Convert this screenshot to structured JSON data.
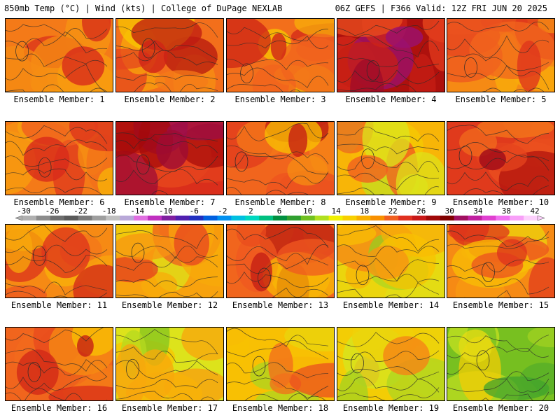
{
  "header": {
    "left": "850mb Temp (°C) | Wind (kts) | College of DuPage NEXLAB",
    "right": "06Z GEFS | F366 Valid: 12Z FRI JUN 20 2025"
  },
  "members": [
    {
      "label": "Ensemble Member: 1",
      "warmth": 0.58
    },
    {
      "label": "Ensemble Member: 2",
      "warmth": 0.6
    },
    {
      "label": "Ensemble Member: 3",
      "warmth": 0.6
    },
    {
      "label": "Ensemble Member: 4",
      "warmth": 0.85
    },
    {
      "label": "Ensemble Member: 5",
      "warmth": 0.55
    },
    {
      "label": "Ensemble Member: 6",
      "warmth": 0.58
    },
    {
      "label": "Ensemble Member: 7",
      "warmth": 0.75
    },
    {
      "label": "Ensemble Member: 8",
      "warmth": 0.62
    },
    {
      "label": "Ensemble Member: 9",
      "warmth": 0.45
    },
    {
      "label": "Ensemble Member: 10",
      "warmth": 0.72
    },
    {
      "label": "Ensemble Member: 11",
      "warmth": 0.55
    },
    {
      "label": "Ensemble Member: 12",
      "warmth": 0.5
    },
    {
      "label": "Ensemble Member: 13",
      "warmth": 0.62
    },
    {
      "label": "Ensemble Member: 14",
      "warmth": 0.35
    },
    {
      "label": "Ensemble Member: 15",
      "warmth": 0.55
    },
    {
      "label": "Ensemble Member: 16",
      "warmth": 0.62
    },
    {
      "label": "Ensemble Member: 17",
      "warmth": 0.3
    },
    {
      "label": "Ensemble Member: 18",
      "warmth": 0.42
    },
    {
      "label": "Ensemble Member: 19",
      "warmth": 0.38
    },
    {
      "label": "Ensemble Member: 20",
      "warmth": 0.15
    }
  ],
  "colorbar": {
    "labels": [
      "-30",
      "-26",
      "-22",
      "-18",
      "-14",
      "-10",
      "-6",
      "-2",
      "2",
      "6",
      "10",
      "14",
      "18",
      "22",
      "26",
      "30",
      "34",
      "38",
      "42"
    ],
    "colors": [
      "#b0b0b0",
      "#8c8c8c",
      "#6e6e6e",
      "#5a5a5a",
      "#7a7a7a",
      "#9e9e9e",
      "#c0c0c0",
      "#b8a8d8",
      "#e070e0",
      "#c030c0",
      "#8020a0",
      "#5020b0",
      "#2030c0",
      "#0060e0",
      "#0090f0",
      "#00c0e0",
      "#00d8c0",
      "#00c080",
      "#009040",
      "#30a030",
      "#70c020",
      "#b0e020",
      "#f0f000",
      "#f8d000",
      "#f8b000",
      "#f89000",
      "#f06020",
      "#e03020",
      "#c81818",
      "#a00808",
      "#800000",
      "#a01060",
      "#c020a0",
      "#e040d0",
      "#f070f0",
      "#f8a0f8",
      "#fcd0fc"
    ]
  }
}
